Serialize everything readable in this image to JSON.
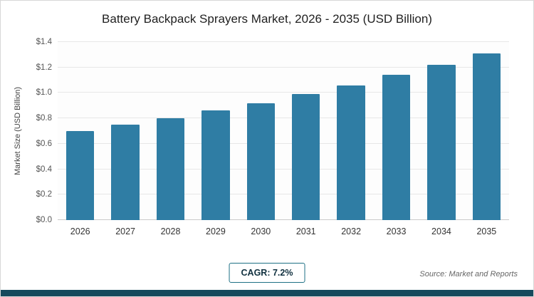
{
  "title": "Battery Backpack Sprayers Market, 2026 - 2035 (USD Billion)",
  "footer": {
    "cagr_label": "CAGR: 7.2%",
    "source": "Source: Market and Reports"
  },
  "chart_data": {
    "type": "bar",
    "title": "Battery Backpack Sprayers Market, 2026 - 2035 (USD Billion)",
    "categories": [
      "2026",
      "2027",
      "2028",
      "2029",
      "2030",
      "2031",
      "2032",
      "2033",
      "2034",
      "2035"
    ],
    "values": [
      0.7,
      0.75,
      0.8,
      0.86,
      0.92,
      0.99,
      1.06,
      1.14,
      1.22,
      1.31
    ],
    "xlabel": "",
    "ylabel": "Market Size (USD Billion)",
    "ylim": [
      0,
      1.4
    ],
    "yticks": [
      0,
      0.2,
      0.4,
      0.6,
      0.8,
      1.0,
      1.2,
      1.4
    ],
    "ytick_labels": [
      "$0.0",
      "$0.2",
      "$0.4",
      "$0.6",
      "$0.8",
      "$1.0",
      "$1.2",
      "$1.4"
    ],
    "grid": true,
    "legend": false,
    "bar_color": "#2f7da4"
  },
  "colors": {
    "bar": "#2f7da4",
    "bottom_strip": "#15495c",
    "badge_border": "#1e7085"
  }
}
